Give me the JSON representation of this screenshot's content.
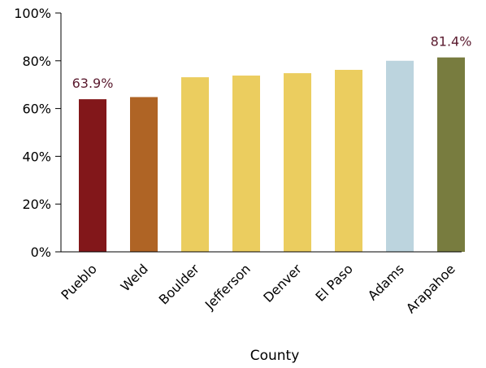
{
  "chart_data": {
    "type": "bar",
    "title": "",
    "xlabel": "County",
    "ylabel": "",
    "categories": [
      "Pueblo",
      "Weld",
      "Boulder",
      "Jefferson",
      "Denver",
      "El Paso",
      "Adams",
      "Arapahoe"
    ],
    "values": [
      63.9,
      64.8,
      73.1,
      73.8,
      74.8,
      76.2,
      80.0,
      81.4
    ],
    "value_unit": "%",
    "ylim": [
      0,
      100
    ],
    "yticks": [
      "0%",
      "20%",
      "40%",
      "60%",
      "80%",
      "100%"
    ],
    "bar_colors": [
      "#82171a",
      "#af6425",
      "#ebcd5f",
      "#ebcd5f",
      "#ebcd5f",
      "#ebcd5f",
      "#bcd4de",
      "#787c3f"
    ],
    "data_labels": [
      {
        "category": "Pueblo",
        "text": "63.9%"
      },
      {
        "category": "Arapahoe",
        "text": "81.4%"
      }
    ],
    "grid": false,
    "legend": "none"
  }
}
